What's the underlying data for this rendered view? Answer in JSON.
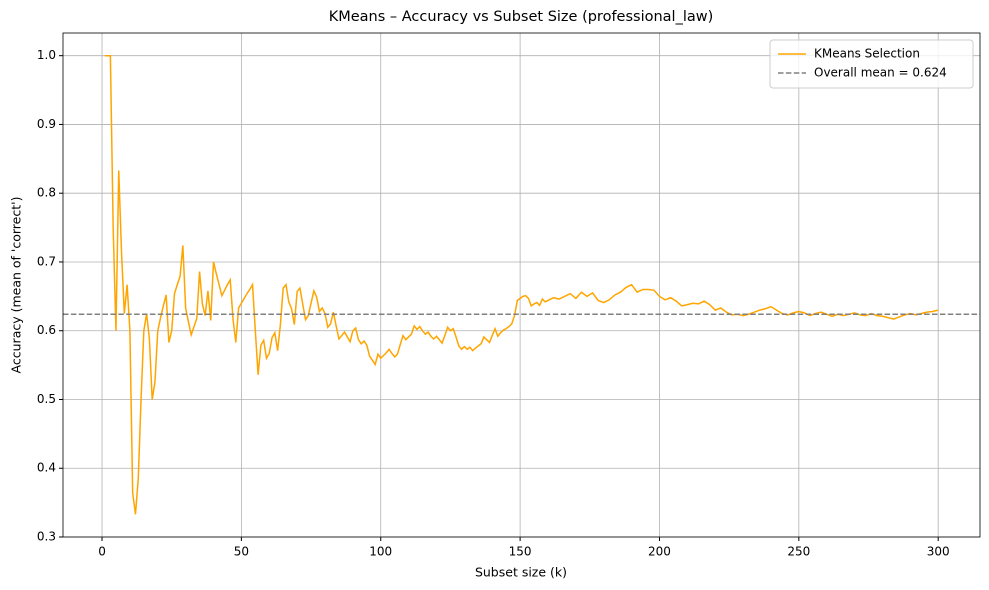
{
  "chart_data": {
    "type": "line",
    "title": "KMeans – Accuracy vs Subset Size (professional_law)",
    "xlabel": "Subset size (k)",
    "ylabel": "Accuracy (mean of 'correct')",
    "xlim": [
      -14,
      315
    ],
    "ylim": [
      0.3,
      1.033
    ],
    "xticks": [
      0,
      50,
      100,
      150,
      200,
      250,
      300
    ],
    "yticks": [
      0.3,
      0.4,
      0.5,
      0.6,
      0.7,
      0.8,
      0.9,
      {
        "value": 1,
        "label": "1.0"
      }
    ],
    "grid": true,
    "legend": "upper right",
    "x": [
      1,
      2,
      3,
      4,
      5,
      6,
      7,
      8,
      9,
      10,
      11,
      12,
      13,
      14,
      15,
      16,
      17,
      18,
      19,
      20,
      21,
      22,
      23,
      24,
      25,
      26,
      27,
      28,
      29,
      30,
      31,
      32,
      33,
      34,
      35,
      36,
      37,
      38,
      39,
      40,
      41,
      42,
      43,
      44,
      45,
      46,
      47,
      48,
      49,
      50,
      51,
      52,
      53,
      54,
      55,
      56,
      57,
      58,
      59,
      60,
      61,
      62,
      63,
      64,
      65,
      66,
      67,
      68,
      69,
      70,
      71,
      72,
      73,
      74,
      75,
      76,
      77,
      78,
      79,
      80,
      81,
      82,
      83,
      84,
      85,
      86,
      87,
      88,
      89,
      90,
      91,
      92,
      93,
      94,
      95,
      96,
      97,
      98,
      99,
      100,
      101,
      102,
      103,
      104,
      105,
      106,
      107,
      108,
      109,
      110,
      111,
      112,
      113,
      114,
      115,
      116,
      117,
      118,
      119,
      120,
      121,
      122,
      123,
      124,
      125,
      126,
      127,
      128,
      129,
      130,
      131,
      132,
      133,
      134,
      135,
      136,
      137,
      138,
      139,
      140,
      141,
      142,
      143,
      144,
      145,
      146,
      147,
      148,
      149,
      150,
      151,
      152,
      153,
      154,
      155,
      156,
      157,
      158,
      159,
      160,
      162,
      164,
      166,
      168,
      170,
      172,
      174,
      176,
      178,
      180,
      182,
      184,
      186,
      188,
      190,
      192,
      194,
      196,
      198,
      200,
      202,
      204,
      206,
      208,
      210,
      212,
      214,
      216,
      218,
      220,
      222,
      224,
      226,
      228,
      230,
      232,
      234,
      236,
      238,
      240,
      242,
      244,
      246,
      248,
      250,
      252,
      254,
      256,
      258,
      260,
      262,
      264,
      266,
      268,
      270,
      272,
      274,
      276,
      278,
      280,
      282,
      284,
      286,
      288,
      290,
      292,
      294,
      296,
      298,
      300
    ],
    "series": [
      {
        "name": "KMeans Selection",
        "color": "#ffa500",
        "values": [
          1.0,
          1.0,
          1.0,
          0.75,
          0.6,
          0.833,
          0.714,
          0.625,
          0.667,
          0.6,
          0.364,
          0.333,
          0.385,
          0.5,
          0.6,
          0.625,
          0.588,
          0.5,
          0.526,
          0.6,
          0.619,
          0.636,
          0.652,
          0.583,
          0.6,
          0.654,
          0.667,
          0.679,
          0.724,
          0.633,
          0.613,
          0.594,
          0.606,
          0.618,
          0.686,
          0.639,
          0.622,
          0.658,
          0.615,
          0.7,
          0.683,
          0.667,
          0.651,
          0.659,
          0.667,
          0.674,
          0.617,
          0.583,
          0.633,
          0.64,
          0.647,
          0.654,
          0.66,
          0.667,
          0.6,
          0.536,
          0.579,
          0.586,
          0.56,
          0.567,
          0.59,
          0.597,
          0.571,
          0.609,
          0.662,
          0.667,
          0.642,
          0.632,
          0.609,
          0.657,
          0.662,
          0.639,
          0.616,
          0.622,
          0.64,
          0.658,
          0.649,
          0.628,
          0.633,
          0.625,
          0.605,
          0.61,
          0.627,
          0.607,
          0.588,
          0.593,
          0.598,
          0.591,
          0.584,
          0.6,
          0.604,
          0.587,
          0.581,
          0.585,
          0.579,
          0.563,
          0.557,
          0.551,
          0.566,
          0.56,
          0.564,
          0.568,
          0.573,
          0.567,
          0.562,
          0.566,
          0.58,
          0.593,
          0.587,
          0.591,
          0.595,
          0.607,
          0.602,
          0.606,
          0.6,
          0.595,
          0.598,
          0.592,
          0.588,
          0.592,
          0.587,
          0.582,
          0.593,
          0.605,
          0.6,
          0.603,
          0.591,
          0.578,
          0.573,
          0.577,
          0.573,
          0.576,
          0.571,
          0.575,
          0.578,
          0.581,
          0.591,
          0.587,
          0.583,
          0.593,
          0.603,
          0.592,
          0.597,
          0.601,
          0.603,
          0.606,
          0.61,
          0.622,
          0.644,
          0.647,
          0.65,
          0.651,
          0.647,
          0.636,
          0.639,
          0.641,
          0.637,
          0.646,
          0.642,
          0.644,
          0.648,
          0.646,
          0.65,
          0.654,
          0.647,
          0.656,
          0.65,
          0.655,
          0.644,
          0.641,
          0.645,
          0.652,
          0.656,
          0.663,
          0.667,
          0.656,
          0.66,
          0.66,
          0.659,
          0.65,
          0.645,
          0.648,
          0.643,
          0.636,
          0.638,
          0.64,
          0.639,
          0.643,
          0.638,
          0.63,
          0.633,
          0.627,
          0.623,
          0.624,
          0.622,
          0.624,
          0.627,
          0.63,
          0.632,
          0.635,
          0.63,
          0.625,
          0.623,
          0.626,
          0.628,
          0.626,
          0.622,
          0.625,
          0.627,
          0.624,
          0.621,
          0.624,
          0.622,
          0.624,
          0.626,
          0.623,
          0.622,
          0.625,
          0.622,
          0.621,
          0.619,
          0.617,
          0.62,
          0.623,
          0.625,
          0.623,
          0.625,
          0.627,
          0.628,
          0.63
        ]
      }
    ],
    "hlines": [
      {
        "value": 0.624,
        "label": "Overall mean = 0.624",
        "color": "#808080"
      }
    ]
  }
}
